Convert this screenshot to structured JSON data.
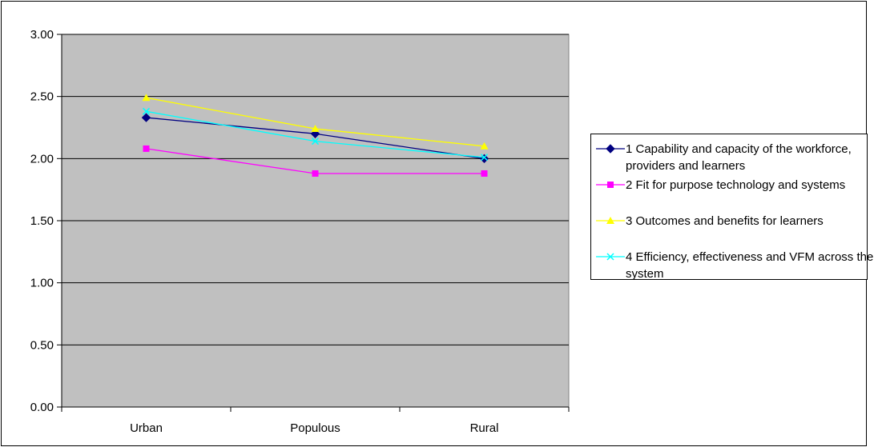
{
  "chart_data": {
    "type": "line",
    "categories": [
      "Urban",
      "Populous",
      "Rural"
    ],
    "series": [
      {
        "name": "1 Capability and capacity of the workforce, providers and learners",
        "values": [
          2.33,
          2.2,
          2.0
        ],
        "color": "#000080",
        "marker": "diamond"
      },
      {
        "name": "2 Fit for purpose technology and systems",
        "values": [
          2.08,
          1.88,
          1.88
        ],
        "color": "#FF00FF",
        "marker": "square"
      },
      {
        "name": "3 Outcomes and benefits for learners",
        "values": [
          2.49,
          2.24,
          2.1
        ],
        "color": "#FFFF00",
        "marker": "triangle"
      },
      {
        "name": "4 Efficiency, effectiveness and VFM across the system",
        "values": [
          2.38,
          2.14,
          2.01
        ],
        "color": "#00FFFF",
        "marker": "x"
      }
    ],
    "ylim": [
      0,
      3
    ],
    "yticks": [
      "0.00",
      "0.50",
      "1.00",
      "1.50",
      "2.00",
      "2.50",
      "3.00"
    ],
    "grid": true,
    "plot_background": "#C0C0C0",
    "legend_position": "right"
  }
}
